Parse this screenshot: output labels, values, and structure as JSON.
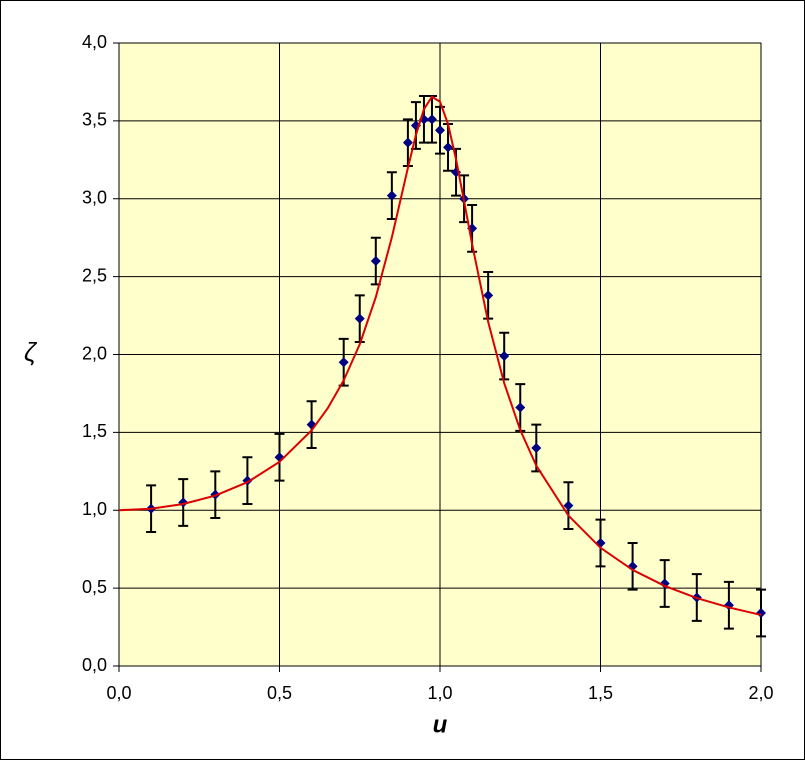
{
  "chart_data": {
    "type": "scatter",
    "xlabel": "u",
    "ylabel": "ζ",
    "xlim": [
      0,
      2
    ],
    "ylim": [
      0,
      4
    ],
    "xticks": [
      {
        "value": 0,
        "label": "0,0"
      },
      {
        "value": 0.5,
        "label": "0,5"
      },
      {
        "value": 1,
        "label": "1,0"
      },
      {
        "value": 1.5,
        "label": "1,5"
      },
      {
        "value": 2,
        "label": "2,0"
      }
    ],
    "yticks": [
      {
        "value": 0,
        "label": "0,0"
      },
      {
        "value": 0.5,
        "label": "0,5"
      },
      {
        "value": 1,
        "label": "1,0"
      },
      {
        "value": 1.5,
        "label": "1,5"
      },
      {
        "value": 2,
        "label": "2,0"
      },
      {
        "value": 2.5,
        "label": "2,5"
      },
      {
        "value": 3,
        "label": "3,0"
      },
      {
        "value": 3.5,
        "label": "3,5"
      },
      {
        "value": 4,
        "label": "4,0"
      }
    ],
    "grid": true,
    "background": "#ffffcc",
    "series": [
      {
        "kind": "points",
        "color": "#000080",
        "error_color": "#000000",
        "x": [
          0.1,
          0.2,
          0.3,
          0.4,
          0.5,
          0.6,
          0.7,
          0.75,
          0.8,
          0.85,
          0.9,
          0.925,
          0.95,
          0.975,
          1.0,
          1.025,
          1.05,
          1.075,
          1.1,
          1.15,
          1.2,
          1.25,
          1.3,
          1.4,
          1.5,
          1.6,
          1.7,
          1.8,
          1.9,
          2.0
        ],
        "values": [
          1.01,
          1.05,
          1.1,
          1.19,
          1.34,
          1.55,
          1.95,
          2.23,
          2.6,
          3.02,
          3.36,
          3.47,
          3.51,
          3.51,
          3.44,
          3.33,
          3.17,
          3.0,
          2.81,
          2.38,
          1.99,
          1.66,
          1.4,
          1.03,
          0.79,
          0.64,
          0.53,
          0.44,
          0.39,
          0.34
        ],
        "errors": [
          0.15,
          0.15,
          0.15,
          0.15,
          0.15,
          0.15,
          0.15,
          0.15,
          0.15,
          0.15,
          0.15,
          0.15,
          0.15,
          0.15,
          0.15,
          0.15,
          0.15,
          0.15,
          0.15,
          0.15,
          0.15,
          0.15,
          0.15,
          0.15,
          0.15,
          0.15,
          0.15,
          0.15,
          0.15,
          0.15
        ]
      },
      {
        "kind": "line",
        "color": "#dd0000",
        "x": [
          0,
          0.1,
          0.2,
          0.3,
          0.4,
          0.5,
          0.6,
          0.65,
          0.7,
          0.75,
          0.8,
          0.85,
          0.9,
          0.925,
          0.95,
          0.975,
          1.0,
          1.025,
          1.05,
          1.075,
          1.1,
          1.15,
          1.2,
          1.25,
          1.3,
          1.4,
          1.5,
          1.6,
          1.7,
          1.8,
          1.9,
          2.0
        ],
        "values": [
          1.0,
          1.01,
          1.04,
          1.094,
          1.18,
          1.311,
          1.513,
          1.654,
          1.834,
          2.066,
          2.368,
          2.752,
          3.198,
          3.41,
          3.575,
          3.655,
          3.623,
          3.48,
          3.253,
          2.985,
          2.709,
          2.21,
          1.816,
          1.515,
          1.286,
          0.966,
          0.759,
          0.617,
          0.514,
          0.436,
          0.376,
          0.328
        ]
      }
    ]
  }
}
